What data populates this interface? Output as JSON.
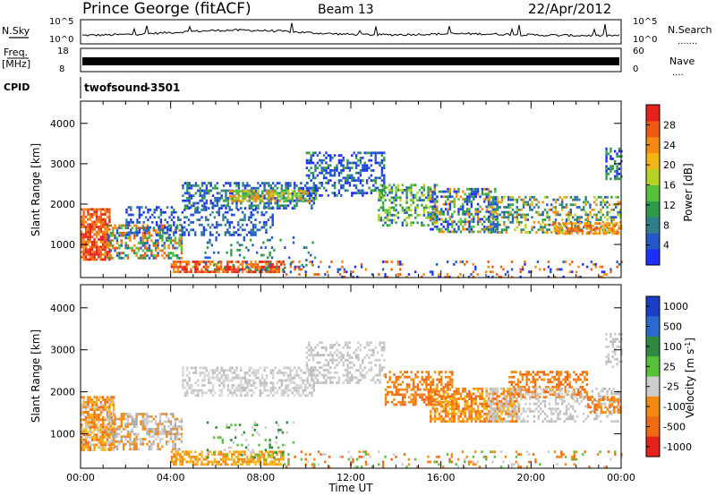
{
  "header": {
    "station": "Prince George (fitACF)",
    "beam": "Beam 13",
    "date": "22/Apr/2012"
  },
  "panels": {
    "nsky": {
      "label": "N.Sky",
      "ticks": [
        "10^5",
        "10^0"
      ]
    },
    "nsearch": {
      "label": "N.Search",
      "ticks": [
        "10^5",
        "10^0"
      ],
      "dots": "......."
    },
    "freq": {
      "label_line1": "Freq.",
      "label_line2": "[MHz]",
      "ticks": [
        "18",
        "8"
      ]
    },
    "nave": {
      "label": "Nave",
      "ticks": [
        "60",
        "0"
      ],
      "dots": "...."
    },
    "cpid": {
      "label": "CPID",
      "program": "twofsound",
      "id": "-3501"
    }
  },
  "chart_data": [
    {
      "type": "heatmap",
      "title": "",
      "quantity": "Power",
      "ylabel": "Slant Range [km]",
      "xlabel": "",
      "ylim": [
        180,
        4550
      ],
      "yticks": [
        "1000",
        "2000",
        "3000",
        "4000"
      ],
      "colorbar": {
        "label": "Power [dB]",
        "ticks": [
          "4",
          "8",
          "12",
          "16",
          "20",
          "24",
          "28"
        ],
        "range": [
          0,
          32
        ],
        "colors": [
          "#1e30ff",
          "#2458c8",
          "#2f7f8a",
          "#2f9a4a",
          "#56c23a",
          "#b6d126",
          "#f3b614",
          "#f48a10",
          "#ef5a12",
          "#e8211a"
        ]
      },
      "bands": [
        {
          "x": [
            0.0,
            1.3
          ],
          "y": [
            600,
            1900
          ],
          "colors": [
            "#e8211a",
            "#ef5a12",
            "#f48a10"
          ],
          "density": 0.8
        },
        {
          "x": [
            1.2,
            4.5
          ],
          "y": [
            650,
            1500
          ],
          "colors": [
            "#2458c8",
            "#2f9a4a",
            "#56c23a",
            "#f48a10",
            "#ef5a12"
          ],
          "density": 0.55
        },
        {
          "x": [
            2.0,
            8.5
          ],
          "y": [
            1250,
            1950
          ],
          "colors": [
            "#1e30ff",
            "#2458c8",
            "#2f7f8a"
          ],
          "density": 0.35
        },
        {
          "x": [
            4.5,
            10.5
          ],
          "y": [
            1900,
            2550
          ],
          "colors": [
            "#1e30ff",
            "#2458c8",
            "#2f7f8a",
            "#2f9a4a"
          ],
          "density": 0.5
        },
        {
          "x": [
            6.5,
            10.5
          ],
          "y": [
            2100,
            2350
          ],
          "colors": [
            "#56c23a",
            "#b6d126",
            "#f48a10"
          ],
          "density": 0.6
        },
        {
          "x": [
            10.0,
            13.5
          ],
          "y": [
            2200,
            3300
          ],
          "colors": [
            "#1e30ff",
            "#2458c8",
            "#2f9a4a"
          ],
          "density": 0.45
        },
        {
          "x": [
            13.2,
            15.8
          ],
          "y": [
            1500,
            2500
          ],
          "colors": [
            "#2458c8",
            "#2f9a4a",
            "#56c23a",
            "#b6d126"
          ],
          "density": 0.45
        },
        {
          "x": [
            15.5,
            18.5
          ],
          "y": [
            1300,
            2400
          ],
          "colors": [
            "#1e30ff",
            "#2458c8",
            "#2f9a4a",
            "#56c23a",
            "#f48a10"
          ],
          "density": 0.5
        },
        {
          "x": [
            18.0,
            24.0
          ],
          "y": [
            1300,
            2200
          ],
          "colors": [
            "#2458c8",
            "#2f7f8a",
            "#2f9a4a",
            "#b6d126",
            "#f48a10"
          ],
          "density": 0.45
        },
        {
          "x": [
            21.0,
            24.0
          ],
          "y": [
            1250,
            1550
          ],
          "colors": [
            "#f48a10",
            "#ef5a12",
            "#f3b614"
          ],
          "density": 0.6
        },
        {
          "x": [
            23.3,
            24.0
          ],
          "y": [
            2600,
            3400
          ],
          "colors": [
            "#2f9a4a",
            "#1e30ff"
          ],
          "density": 0.5
        },
        {
          "x": [
            4.0,
            9.0
          ],
          "y": [
            300,
            600
          ],
          "colors": [
            "#f48a10",
            "#ef5a12",
            "#e8211a"
          ],
          "density": 0.7
        },
        {
          "x": [
            5.5,
            10.5
          ],
          "y": [
            350,
            1200
          ],
          "colors": [
            "#2458c8",
            "#2f9a4a"
          ],
          "density": 0.12
        },
        {
          "x": [
            9.0,
            24.0
          ],
          "y": [
            220,
            600
          ],
          "colors": [
            "#2458c8",
            "#ef5a12",
            "#f48a10",
            "#1e30ff"
          ],
          "density": 0.15
        }
      ]
    },
    {
      "type": "heatmap",
      "title": "",
      "quantity": "Velocity",
      "ylabel": "Slant Range [km]",
      "xlabel": "Time UT",
      "ylim": [
        180,
        4550
      ],
      "xlim": [
        0,
        24
      ],
      "xticks": [
        "00:00",
        "04:00",
        "08:00",
        "12:00",
        "16:00",
        "20:00",
        "00:00"
      ],
      "yticks": [
        "1000",
        "2000",
        "3000",
        "4000"
      ],
      "colorbar": {
        "label": "Velocity [m s^-1]",
        "ticks": [
          "1000",
          "500",
          "100",
          "25",
          "-25",
          "-100",
          "-500",
          "-1000"
        ],
        "colors": [
          "#1a3ec8",
          "#2a6ad0",
          "#2f8a40",
          "#56c23a",
          "#cccccc",
          "#f48a10",
          "#ef6a12",
          "#e8211a"
        ]
      },
      "bands": [
        {
          "x": [
            0.0,
            1.5
          ],
          "y": [
            600,
            1900
          ],
          "colors": [
            "#f48a10",
            "#ef6a12",
            "#f3b614",
            "#cccccc"
          ],
          "density": 0.8
        },
        {
          "x": [
            1.2,
            4.5
          ],
          "y": [
            650,
            1500
          ],
          "colors": [
            "#cccccc",
            "#f48a10",
            "#aaaaaa"
          ],
          "density": 0.55
        },
        {
          "x": [
            4.5,
            10.5
          ],
          "y": [
            1900,
            2600
          ],
          "colors": [
            "#cccccc",
            "#bdbdbd",
            "#d9d9d9"
          ],
          "density": 0.5
        },
        {
          "x": [
            10.0,
            13.5
          ],
          "y": [
            2200,
            3200
          ],
          "colors": [
            "#cccccc",
            "#bdbdbd"
          ],
          "density": 0.4
        },
        {
          "x": [
            13.5,
            16.5
          ],
          "y": [
            1700,
            2500
          ],
          "colors": [
            "#f48a10",
            "#ef6a12"
          ],
          "density": 0.5
        },
        {
          "x": [
            15.5,
            19.5
          ],
          "y": [
            1300,
            2100
          ],
          "colors": [
            "#f48a10",
            "#ef6a12",
            "#f3b614"
          ],
          "density": 0.65
        },
        {
          "x": [
            19.0,
            22.5
          ],
          "y": [
            1900,
            2500
          ],
          "colors": [
            "#f48a10",
            "#ef6a12"
          ],
          "density": 0.5
        },
        {
          "x": [
            18.0,
            24.0
          ],
          "y": [
            1300,
            2100
          ],
          "colors": [
            "#cccccc",
            "#bdbdbd"
          ],
          "density": 0.35
        },
        {
          "x": [
            22.5,
            24.0
          ],
          "y": [
            1500,
            1900
          ],
          "colors": [
            "#f48a10",
            "#ef6a12"
          ],
          "density": 0.55
        },
        {
          "x": [
            23.3,
            24.0
          ],
          "y": [
            2600,
            3400
          ],
          "colors": [
            "#cccccc",
            "#bdbdbd"
          ],
          "density": 0.45
        },
        {
          "x": [
            4.0,
            9.0
          ],
          "y": [
            300,
            600
          ],
          "colors": [
            "#f3b614",
            "#f48a10"
          ],
          "density": 0.65
        },
        {
          "x": [
            5.5,
            9.5
          ],
          "y": [
            400,
            1300
          ],
          "colors": [
            "#2f8a40",
            "#56c23a",
            "#cccccc"
          ],
          "density": 0.12
        },
        {
          "x": [
            9.0,
            24.0
          ],
          "y": [
            220,
            600
          ],
          "colors": [
            "#cccccc",
            "#f48a10",
            "#56c23a",
            "#ef6a12"
          ],
          "density": 0.15
        }
      ]
    }
  ]
}
